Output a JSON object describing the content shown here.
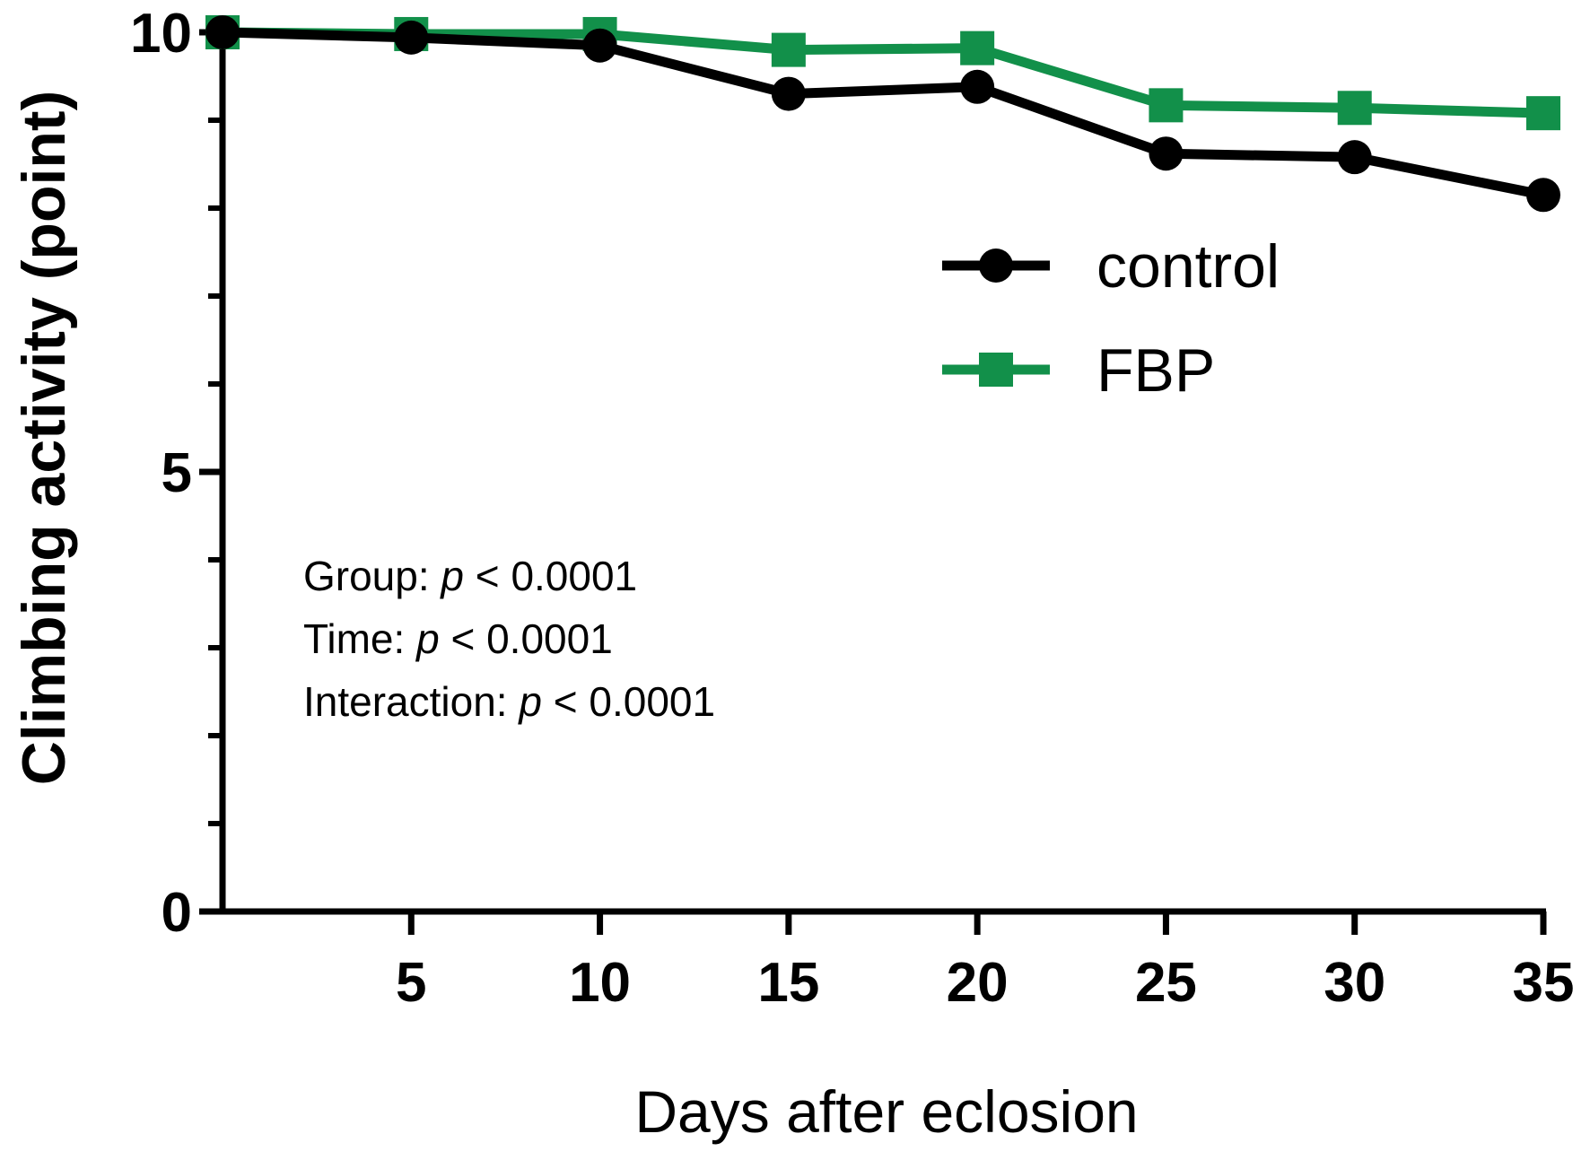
{
  "chart_data": {
    "type": "line",
    "title": "",
    "xlabel": "Days after eclosion",
    "ylabel": "Climbing activity (point)",
    "x": [
      0,
      5,
      10,
      15,
      20,
      25,
      30,
      35
    ],
    "x_tick_labels": [
      "5",
      "10",
      "15",
      "20",
      "25",
      "30",
      "35"
    ],
    "x_tick_values": [
      5,
      10,
      15,
      20,
      25,
      30,
      35
    ],
    "y_tick_labels": [
      "0",
      "5",
      "10"
    ],
    "y_tick_values": [
      0,
      5,
      10
    ],
    "y_minor_ticks": [
      1,
      2,
      3,
      4,
      6,
      7,
      8,
      9
    ],
    "xlim": [
      0,
      35
    ],
    "ylim": [
      0,
      10
    ],
    "grid": false,
    "legend_position": "top-right",
    "series": [
      {
        "name": "control",
        "marker": "circle",
        "color": "#000000",
        "values": [
          10.0,
          9.94,
          9.85,
          9.3,
          9.38,
          8.62,
          8.58,
          8.15
        ]
      },
      {
        "name": "FBP",
        "marker": "square",
        "color": "#12904a",
        "values": [
          10.0,
          9.98,
          9.98,
          9.8,
          9.82,
          9.17,
          9.14,
          9.08
        ]
      }
    ],
    "annotations": [
      {
        "label": "Group: ",
        "p": "p",
        "rest": " < 0.0001"
      },
      {
        "label": "Time: ",
        "p": "p",
        "rest": " < 0.0001"
      },
      {
        "label": "Interaction: ",
        "p": "p",
        "rest": " < 0.0001"
      }
    ]
  }
}
